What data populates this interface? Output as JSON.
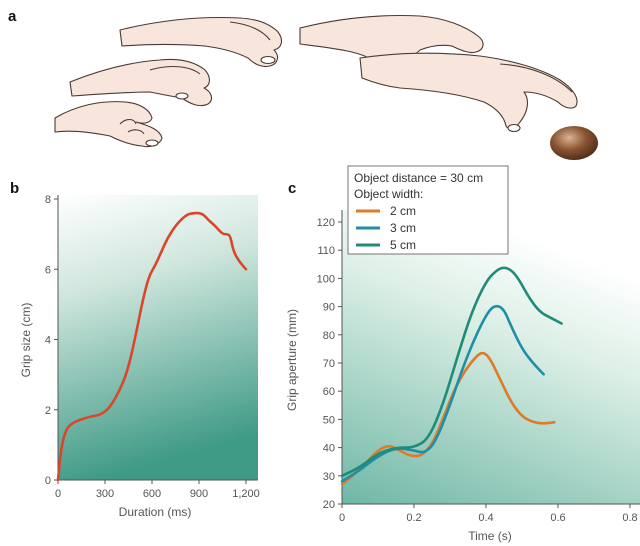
{
  "panels": {
    "a": "a",
    "b": "b",
    "c": "c"
  },
  "chart_data": [
    {
      "panel": "b",
      "type": "line",
      "xlabel": "Duration (ms)",
      "ylabel": "Grip size (cm)",
      "xlim": [
        0,
        1200
      ],
      "ylim": [
        0,
        8
      ],
      "xticks": [
        0,
        300,
        600,
        900,
        1200
      ],
      "xtick_labels": [
        "0",
        "300",
        "600",
        "900",
        "1,200"
      ],
      "yticks": [
        0,
        2,
        4,
        6,
        8
      ],
      "ytick_labels": [
        "0",
        "2",
        "4",
        "6",
        "8"
      ],
      "background": "teal gradient",
      "series": [
        {
          "color": "#d9472b",
          "x": [
            0,
            20,
            50,
            100,
            200,
            270,
            330,
            400,
            450,
            500,
            540,
            580,
            620,
            660,
            700,
            760,
            820,
            860,
            920,
            960,
            1000,
            1050,
            1080,
            1100,
            1120,
            1160,
            1200
          ],
          "y": [
            0,
            0.9,
            1.45,
            1.65,
            1.8,
            1.85,
            2.05,
            2.6,
            3.2,
            4.2,
            5.1,
            5.8,
            6.1,
            6.5,
            6.9,
            7.3,
            7.55,
            7.6,
            7.6,
            7.4,
            7.25,
            7.0,
            7.0,
            6.95,
            6.5,
            6.2,
            6.0
          ]
        }
      ]
    },
    {
      "panel": "c",
      "type": "line",
      "xlabel": "Time (s)",
      "ylabel": "Grip aperture (mm)",
      "xlim": [
        0,
        0.8
      ],
      "ylim": [
        20,
        120
      ],
      "xticks": [
        0,
        0.2,
        0.4,
        0.6,
        0.8
      ],
      "xtick_labels": [
        "0",
        "0.2",
        "0.4",
        "0.6",
        "0.8"
      ],
      "yticks": [
        20,
        30,
        40,
        50,
        60,
        70,
        80,
        90,
        100,
        110,
        120
      ],
      "ytick_labels": [
        "20",
        "30",
        "40",
        "50",
        "60",
        "70",
        "80",
        "90",
        "100",
        "110",
        "120"
      ],
      "background": "teal gradient",
      "legend": {
        "title_lines": [
          "Object distance = 30 cm",
          "Object width:"
        ],
        "placement": "top-left",
        "entries": [
          {
            "label": "2 cm",
            "color": "#e07a28"
          },
          {
            "label": "3 cm",
            "color": "#1e8fa6"
          },
          {
            "label": "5 cm",
            "color": "#1f8c78"
          }
        ]
      },
      "series": [
        {
          "name": "2 cm",
          "color": "#e07a28",
          "x": [
            0,
            0.03,
            0.07,
            0.1,
            0.13,
            0.16,
            0.19,
            0.22,
            0.25,
            0.28,
            0.31,
            0.34,
            0.37,
            0.39,
            0.41,
            0.44,
            0.47,
            0.5,
            0.53,
            0.56,
            0.59
          ],
          "y": [
            27,
            30,
            35,
            39,
            41,
            39,
            37,
            37,
            41,
            50,
            60,
            67,
            72,
            74,
            72,
            64,
            56,
            51,
            49,
            48.5,
            49
          ]
        },
        {
          "name": "3 cm",
          "color": "#1e8fa6",
          "x": [
            0,
            0.05,
            0.1,
            0.15,
            0.2,
            0.23,
            0.26,
            0.3,
            0.34,
            0.38,
            0.41,
            0.43,
            0.45,
            0.47,
            0.5,
            0.53,
            0.56
          ],
          "y": [
            28,
            32,
            37,
            40,
            39,
            38,
            42,
            55,
            70,
            82,
            89,
            90.5,
            89,
            83,
            75,
            70,
            66
          ]
        },
        {
          "name": "5 cm",
          "color": "#1f8c78",
          "x": [
            0,
            0.05,
            0.1,
            0.15,
            0.2,
            0.24,
            0.28,
            0.32,
            0.36,
            0.4,
            0.43,
            0.45,
            0.47,
            0.49,
            0.52,
            0.55,
            0.58,
            0.61
          ],
          "y": [
            30,
            33,
            38,
            40,
            40,
            43,
            55,
            72,
            88,
            99,
            103,
            104,
            103,
            100,
            93,
            88,
            86,
            84
          ]
        }
      ]
    }
  ],
  "colors": {
    "hand_fill": "#f8e6dc",
    "hand_outline": "#4a3a34",
    "ball": "#7a4a2a",
    "axis": "#555555"
  }
}
